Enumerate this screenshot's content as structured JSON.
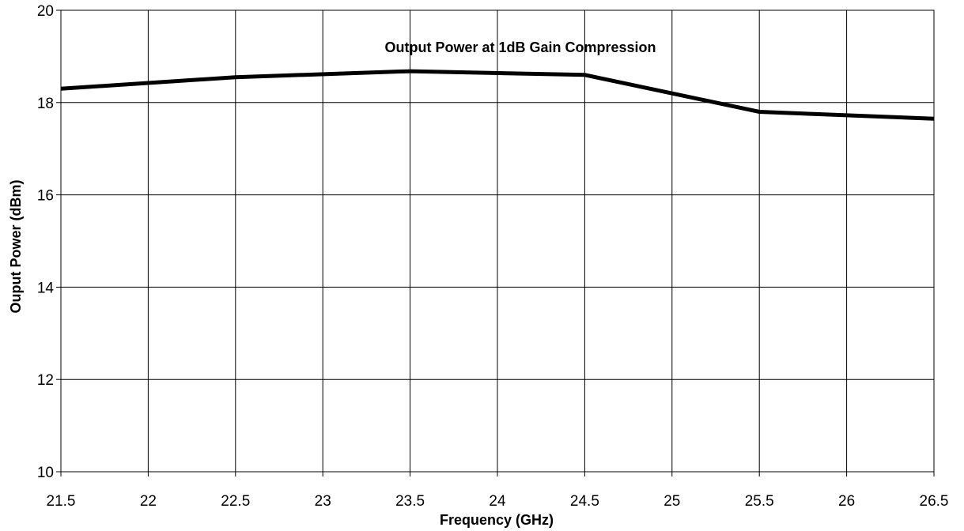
{
  "chart_data": {
    "type": "line",
    "title": "",
    "xlabel": "Frequency (GHz)",
    "ylabel": "Ouput Power (dBm)",
    "xlim": [
      21.5,
      26.5
    ],
    "ylim": [
      10,
      20
    ],
    "xticks": [
      "21.5",
      "22",
      "22.5",
      "23",
      "23.5",
      "24",
      "24.5",
      "25",
      "25.5",
      "26",
      "26.5"
    ],
    "yticks": [
      "10",
      "12",
      "14",
      "16",
      "18",
      "20"
    ],
    "grid": true,
    "series": [
      {
        "name": "Output Power at 1dB Gain Compression",
        "color": "#000000",
        "x": [
          21.5,
          22.5,
          23.5,
          24.5,
          25.5,
          26.5
        ],
        "y": [
          18.3,
          18.55,
          18.68,
          18.6,
          17.8,
          17.65
        ]
      }
    ]
  }
}
